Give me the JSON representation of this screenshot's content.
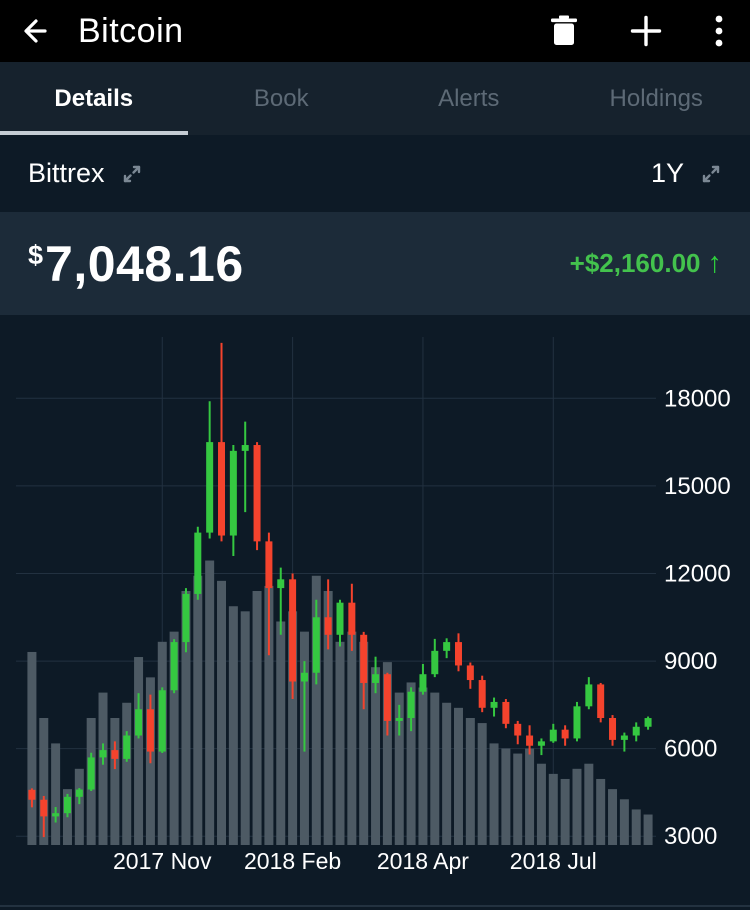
{
  "app_bar": {
    "title": "Bitcoin",
    "back_icon": "back-arrow",
    "action_icons": [
      "trash",
      "plus",
      "kebab-menu"
    ]
  },
  "tabs": [
    {
      "label": "Details",
      "active": true
    },
    {
      "label": "Book",
      "active": false
    },
    {
      "label": "Alerts",
      "active": false
    },
    {
      "label": "Holdings",
      "active": false
    }
  ],
  "selector_row": {
    "exchange": "Bittrex",
    "exchange_icon": "expand-diagonal",
    "time_range": "1Y",
    "range_icon": "expand-diagonal"
  },
  "price_row": {
    "currency_symbol": "$",
    "price": "7,048.16",
    "change": "+$2,160.00",
    "change_direction": "up",
    "change_arrow": "↑",
    "change_color": "#43c24d",
    "arrow_color": "#2fd13c"
  },
  "chart_data": {
    "type": "candlestick",
    "instrument": "Bitcoin",
    "exchange": "Bittrex",
    "range": "1Y",
    "interval": "weekly",
    "y_axis": {
      "min": 2700,
      "max": 20100,
      "ticks": [
        3000,
        6000,
        9000,
        12000,
        15000,
        18000
      ]
    },
    "x_axis": {
      "labels": [
        {
          "label": "2017 Nov",
          "index": 11
        },
        {
          "label": "2018 Feb",
          "index": 22
        },
        {
          "label": "2018 Apr",
          "index": 33
        },
        {
          "label": "2018 Jul",
          "index": 44
        }
      ]
    },
    "candles": [
      [
        4590,
        4640,
        3990,
        4250
      ],
      [
        4250,
        4380,
        2970,
        3680
      ],
      [
        3680,
        4000,
        3470,
        3790
      ],
      [
        3790,
        4450,
        3650,
        4350
      ],
      [
        4350,
        4650,
        4100,
        4600
      ],
      [
        4600,
        5860,
        4550,
        5700
      ],
      [
        5700,
        6180,
        5450,
        5950
      ],
      [
        5950,
        6250,
        5300,
        5650
      ],
      [
        5650,
        6600,
        5550,
        6450
      ],
      [
        6450,
        7900,
        6350,
        7350
      ],
      [
        7350,
        7850,
        5500,
        5900
      ],
      [
        5900,
        8100,
        5850,
        8000
      ],
      [
        8000,
        9750,
        7900,
        9650
      ],
      [
        9650,
        11500,
        9300,
        11300
      ],
      [
        11300,
        13600,
        11100,
        13400
      ],
      [
        13400,
        17900,
        13200,
        16500
      ],
      [
        16500,
        19900,
        13100,
        13300
      ],
      [
        13300,
        16400,
        12600,
        16200
      ],
      [
        16200,
        17200,
        14100,
        16400
      ],
      [
        16400,
        16500,
        12800,
        13100
      ],
      [
        13100,
        13400,
        9200,
        11500
      ],
      [
        11500,
        12200,
        9900,
        11800
      ],
      [
        11800,
        12000,
        7700,
        8300
      ],
      [
        8300,
        9000,
        5900,
        8600
      ],
      [
        8600,
        11100,
        8200,
        10500
      ],
      [
        10500,
        11800,
        9400,
        9900
      ],
      [
        9900,
        11100,
        9500,
        11000
      ],
      [
        11000,
        11650,
        9350,
        9900
      ],
      [
        9900,
        10000,
        7350,
        8250
      ],
      [
        8250,
        9150,
        7900,
        8550
      ],
      [
        8550,
        8600,
        6450,
        6950
      ],
      [
        6950,
        7500,
        6450,
        7050
      ],
      [
        7050,
        8100,
        6600,
        7950
      ],
      [
        7950,
        8900,
        7850,
        8550
      ],
      [
        8550,
        9760,
        8450,
        9350
      ],
      [
        9350,
        9780,
        9100,
        9650
      ],
      [
        9650,
        9950,
        8650,
        8850
      ],
      [
        8850,
        8950,
        8050,
        8350
      ],
      [
        8350,
        8500,
        7250,
        7400
      ],
      [
        7400,
        7750,
        7100,
        7600
      ],
      [
        7600,
        7700,
        6700,
        6850
      ],
      [
        6850,
        6950,
        6150,
        6450
      ],
      [
        6450,
        6800,
        5800,
        6100
      ],
      [
        6100,
        6350,
        5780,
        6250
      ],
      [
        6250,
        6850,
        6200,
        6650
      ],
      [
        6650,
        6800,
        6100,
        6350
      ],
      [
        6350,
        7600,
        6250,
        7450
      ],
      [
        7450,
        8450,
        7350,
        8200
      ],
      [
        8200,
        8250,
        6900,
        7050
      ],
      [
        7050,
        7150,
        6100,
        6300
      ],
      [
        6300,
        6550,
        5900,
        6450
      ],
      [
        6450,
        6900,
        6250,
        6750
      ],
      [
        6750,
        7100,
        6650,
        7048
      ]
    ],
    "volumes": [
      38,
      25,
      20,
      11,
      15,
      25,
      30,
      25,
      28,
      37,
      33,
      40,
      42,
      50,
      53,
      56,
      52,
      47,
      46,
      50,
      51,
      44,
      46,
      42,
      53,
      50,
      40,
      42,
      40,
      35,
      36,
      30,
      32,
      31,
      30,
      28,
      27,
      25,
      24,
      20,
      19,
      18,
      19,
      16,
      14,
      13,
      15,
      16,
      13,
      11,
      9,
      7,
      6
    ],
    "colors": {
      "up": "#35c841",
      "down": "#f4432d",
      "volume": "#4d5a64",
      "grid": "#223140",
      "axis_text": "#ffffff",
      "background": "#0d1a26"
    }
  }
}
